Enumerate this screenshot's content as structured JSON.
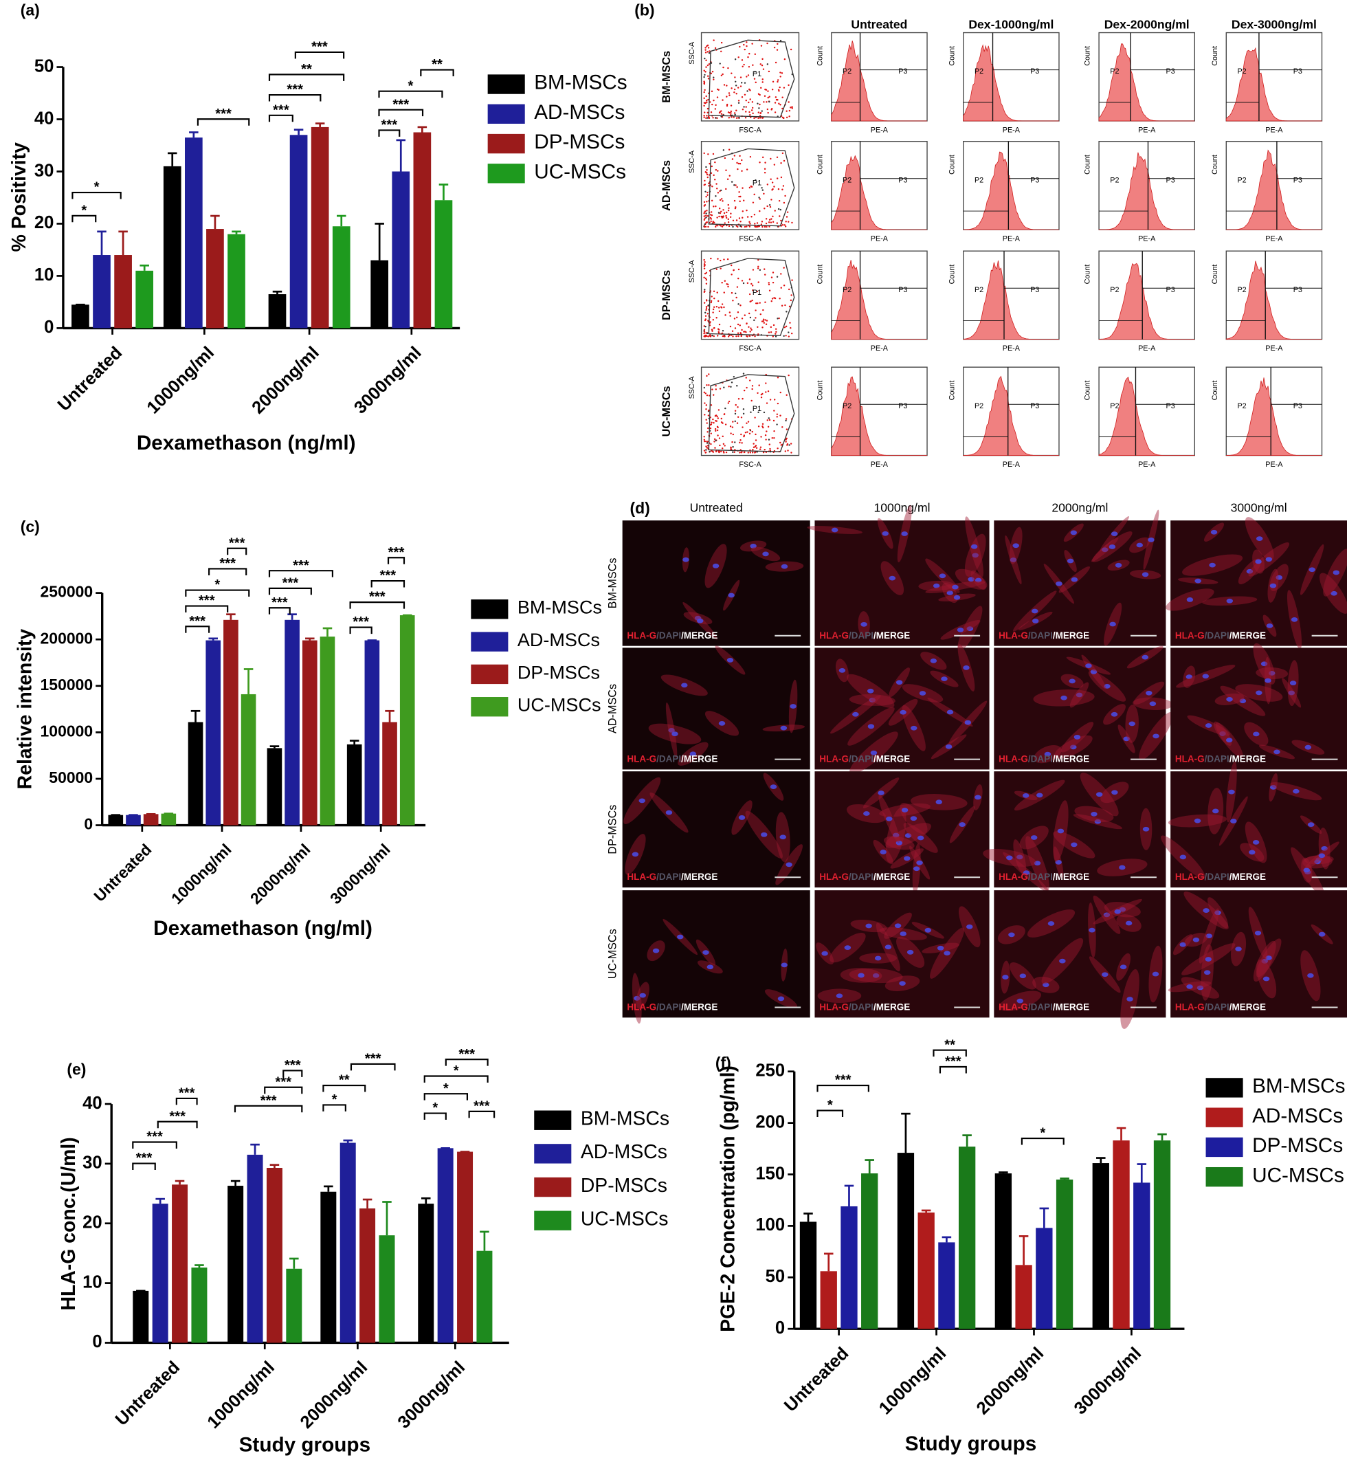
{
  "chart_data": [
    {
      "type": "bar",
      "panel_label": "(a)",
      "x_label": "Dexamethason (ng/ml)",
      "y_label": "% Positivity",
      "categories": [
        "Untreated",
        "1000ng/ml",
        "2000ng/ml",
        "3000ng/ml"
      ],
      "series": [
        {
          "name": "BM-MSCs",
          "color": "#000000",
          "values": [
            4.5,
            31,
            6.5,
            13
          ],
          "errors": [
            0,
            2.5,
            0.5,
            7
          ]
        },
        {
          "name": "AD-MSCs",
          "color": "#1f1f99",
          "values": [
            14,
            36.5,
            37,
            30
          ],
          "errors": [
            4.5,
            1,
            1,
            6
          ]
        },
        {
          "name": "DP-MSCs",
          "color": "#9b1b1b",
          "values": [
            14,
            19,
            38.5,
            37.5
          ],
          "errors": [
            4.5,
            2.5,
            0.7,
            1
          ]
        },
        {
          "name": "UC-MSCs",
          "color": "#1e9a1e",
          "values": [
            11,
            18,
            19.5,
            24.5
          ],
          "errors": [
            1,
            0.5,
            2,
            3
          ]
        }
      ],
      "ylim": [
        0,
        50
      ],
      "yticks": [
        0,
        10,
        20,
        30,
        40,
        50
      ],
      "annotations": [
        "*",
        "*",
        "***",
        "***",
        "**",
        "***",
        "***",
        "**",
        "*",
        "***",
        "***"
      ]
    },
    {
      "type": "bar",
      "panel_label": "(c)",
      "x_label": "Dexamethason (ng/ml)",
      "y_label": "Relative intensity",
      "categories": [
        "Untreated",
        "1000ng/ml",
        "2000ng/ml",
        "3000ng/ml"
      ],
      "series": [
        {
          "name": "BM-MSCs",
          "color": "#000000",
          "values": [
            11000,
            111000,
            83000,
            87000
          ],
          "errors": [
            0,
            12000,
            2000,
            4000
          ]
        },
        {
          "name": "AD-MSCs",
          "color": "#1f1f99",
          "values": [
            11000,
            199000,
            221000,
            199000
          ],
          "errors": [
            0,
            2000,
            6000,
            0
          ]
        },
        {
          "name": "DP-MSCs",
          "color": "#9b1b1b",
          "values": [
            12000,
            221000,
            199000,
            111000
          ],
          "errors": [
            0,
            6000,
            2000,
            12000
          ]
        },
        {
          "name": "UC-MSCs",
          "color": "#3f9b1f",
          "values": [
            12500,
            141000,
            203000,
            226000
          ],
          "errors": [
            0,
            27000,
            9000,
            0
          ]
        }
      ],
      "ylim": [
        0,
        250000
      ],
      "yticks": [
        0,
        50000,
        100000,
        150000,
        200000,
        250000
      ],
      "annotations": [
        "***",
        "***",
        "*",
        "***",
        "***",
        "***",
        "***",
        "***",
        "***",
        "***",
        "***",
        "***"
      ]
    },
    {
      "type": "bar",
      "panel_label": "(e)",
      "x_label": "Study groups",
      "y_label": "HLA-G conc.(U/ml)",
      "categories": [
        "Untreated",
        "1000ng/ml",
        "2000ng/ml",
        "3000ng/ml"
      ],
      "series": [
        {
          "name": "BM-MSCs",
          "color": "#000000",
          "values": [
            8.7,
            26.3,
            25.3,
            23.3
          ],
          "errors": [
            0,
            0.8,
            0.9,
            0.9
          ]
        },
        {
          "name": "AD-MSCs",
          "color": "#1f1f99",
          "values": [
            23.3,
            31.5,
            33.5,
            32.6
          ],
          "errors": [
            0.8,
            1.7,
            0.4,
            0
          ]
        },
        {
          "name": "DP-MSCs",
          "color": "#9b1b1b",
          "values": [
            26.5,
            29.3,
            22.5,
            32
          ],
          "errors": [
            0.6,
            0.5,
            1.5,
            0
          ]
        },
        {
          "name": "UC-MSCs",
          "color": "#1e8a1e",
          "values": [
            12.6,
            12.4,
            18,
            15.4
          ],
          "errors": [
            0.4,
            1.7,
            5.6,
            3.2
          ]
        }
      ],
      "ylim": [
        0,
        40
      ],
      "yticks": [
        0,
        10,
        20,
        30,
        40
      ],
      "annotations": [
        "***",
        "***",
        "***",
        "***",
        "***",
        "***",
        "***",
        "***",
        "**",
        "*",
        "***",
        "*",
        "*",
        "*",
        "***"
      ]
    },
    {
      "type": "bar",
      "panel_label": "(f)",
      "x_label": "Study groups",
      "y_label": "PGE-2 Concentration (pg/ml)",
      "categories": [
        "Untreated",
        "1000ng/ml",
        "2000ng/ml",
        "3000ng/ml"
      ],
      "series": [
        {
          "name": "BM-MSCs",
          "color": "#000000",
          "values": [
            104,
            171,
            151,
            161
          ],
          "errors": [
            8,
            38,
            1,
            5
          ]
        },
        {
          "name": "AD-MSCs",
          "color": "#b01c1c",
          "values": [
            56,
            113,
            62,
            183
          ],
          "errors": [
            17,
            2,
            28,
            12
          ]
        },
        {
          "name": "DP-MSCs",
          "color": "#1d1d9e",
          "values": [
            119,
            84,
            98,
            142
          ],
          "errors": [
            20,
            5,
            19,
            18
          ]
        },
        {
          "name": "UC-MSCs",
          "color": "#1a7a1a",
          "values": [
            151,
            177,
            145,
            183
          ],
          "errors": [
            13,
            11,
            1,
            6
          ]
        }
      ],
      "ylim": [
        0,
        250
      ],
      "yticks": [
        0,
        50,
        100,
        150,
        200,
        250
      ],
      "annotations": [
        "***",
        "*",
        "**",
        "***",
        "*"
      ]
    }
  ],
  "flow_cytometry": {
    "panel_label": "(b)",
    "columns": [
      "Untreated",
      "Dex-1000ng/ml",
      "Dex-2000ng/ml",
      "Dex-3000ng/ml"
    ],
    "rows": [
      "BM-MSCs",
      "AD-MSCs",
      "DP-MSCs",
      "UC-MSCs"
    ],
    "scatter_x": "FSC-A",
    "scatter_y": "SSC-A",
    "gate": "P1",
    "hist_x": "PE-A",
    "hist_y": "Count",
    "gate_low": "P2",
    "gate_high": "P3"
  },
  "immunofluorescence": {
    "panel_label": "(d)",
    "columns": [
      "Untreated",
      "1000ng/ml",
      "2000ng/ml",
      "3000ng/ml"
    ],
    "rows": [
      "BM-MSCs",
      "AD-MSCs",
      "DP-MSCs",
      "UC-MSCs"
    ],
    "stain": [
      "HLA-G",
      "/DAPI",
      "/MERGE"
    ]
  }
}
